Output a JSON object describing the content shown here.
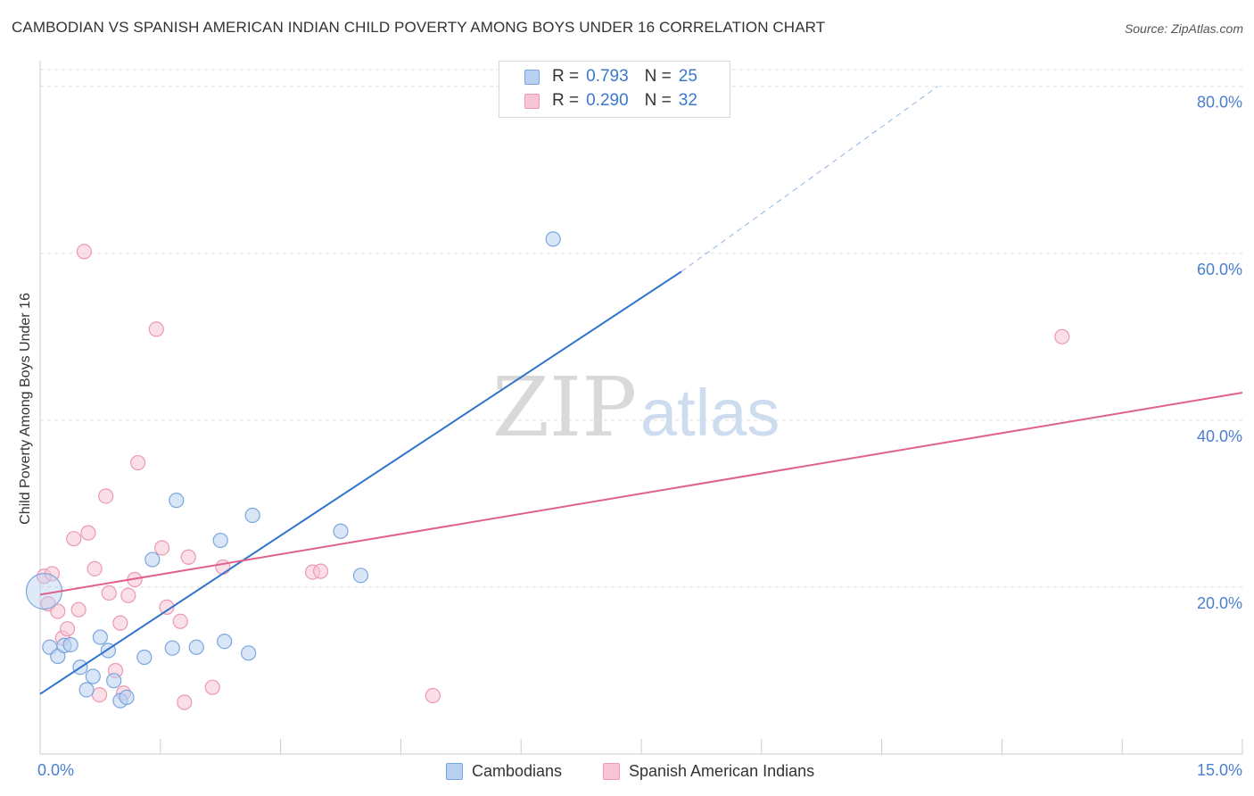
{
  "title": "CAMBODIAN VS SPANISH AMERICAN INDIAN CHILD POVERTY AMONG BOYS UNDER 16 CORRELATION CHART",
  "source": "Source: ZipAtlas.com",
  "watermark": {
    "zip": "ZIP",
    "atlas": "atlas"
  },
  "legend": {
    "r_label": "R =",
    "n_label": "N =",
    "rows": [
      {
        "r": "0.793",
        "n": "25"
      },
      {
        "r": "0.290",
        "n": "32"
      }
    ]
  },
  "colors": {
    "cambodian_fill": "#b8d1f2",
    "cambodian_stroke": "#7aa6de",
    "cambodian_line": "#2f73cc",
    "spanish_fill": "#f8c5d4",
    "spanish_stroke": "#ec98b2",
    "spanish_line": "#e0628b",
    "grid": "#dedede",
    "tick_text": "#4a7fcf"
  },
  "chart_data": {
    "type": "scatter",
    "title": "CAMBODIAN VS SPANISH AMERICAN INDIAN CHILD POVERTY AMONG BOYS UNDER 16 CORRELATION CHART",
    "xlabel": "",
    "ylabel": "Child Poverty Among Boys Under 16",
    "xlim": [
      0,
      15
    ],
    "ylim": [
      0,
      82
    ],
    "x_tick_labels": [
      {
        "value": 0,
        "label": "0.0%"
      },
      {
        "value": 15,
        "label": "15.0%"
      }
    ],
    "y_tick_labels": [
      {
        "value": 20,
        "label": "20.0%"
      },
      {
        "value": 40,
        "label": "40.0%"
      },
      {
        "value": 60,
        "label": "60.0%"
      },
      {
        "value": 80,
        "label": "80.0%"
      }
    ],
    "grid": true,
    "legend_position": "top-center",
    "series": [
      {
        "name": "Cambodians",
        "r": 0.793,
        "n": 25,
        "points": [
          [
            0.12,
            12.8
          ],
          [
            0.22,
            11.7
          ],
          [
            0.3,
            13.0
          ],
          [
            0.38,
            13.1
          ],
          [
            0.5,
            10.4
          ],
          [
            0.58,
            7.7
          ],
          [
            0.66,
            9.3
          ],
          [
            0.75,
            14.0
          ],
          [
            0.85,
            12.4
          ],
          [
            0.92,
            8.8
          ],
          [
            1.0,
            6.4
          ],
          [
            1.08,
            6.8
          ],
          [
            1.3,
            11.6
          ],
          [
            1.4,
            23.3
          ],
          [
            1.65,
            12.7
          ],
          [
            1.7,
            30.4
          ],
          [
            1.95,
            12.8
          ],
          [
            2.25,
            25.6
          ],
          [
            2.3,
            13.5
          ],
          [
            2.6,
            12.1
          ],
          [
            2.65,
            28.6
          ],
          [
            3.75,
            26.7
          ],
          [
            4.0,
            21.4
          ],
          [
            6.4,
            61.7
          ],
          [
            0.05,
            19.5
          ]
        ],
        "trend": {
          "x0": 0.0,
          "y0": 7.2,
          "x1": 8.0,
          "y1": 57.8,
          "dash_x1": 11.2,
          "dash_y1": 80.0
        }
      },
      {
        "name": "Spanish American Indians",
        "r": 0.29,
        "n": 32,
        "points": [
          [
            0.05,
            21.3
          ],
          [
            0.1,
            18.0
          ],
          [
            0.15,
            21.6
          ],
          [
            0.22,
            17.1
          ],
          [
            0.28,
            13.9
          ],
          [
            0.34,
            15.0
          ],
          [
            0.42,
            25.8
          ],
          [
            0.48,
            17.3
          ],
          [
            0.6,
            26.5
          ],
          [
            0.68,
            22.2
          ],
          [
            0.74,
            7.1
          ],
          [
            0.82,
            30.9
          ],
          [
            0.86,
            19.3
          ],
          [
            0.94,
            10.0
          ],
          [
            1.0,
            15.7
          ],
          [
            1.04,
            7.3
          ],
          [
            1.1,
            19.0
          ],
          [
            1.18,
            20.9
          ],
          [
            1.22,
            34.9
          ],
          [
            1.45,
            50.9
          ],
          [
            1.52,
            24.7
          ],
          [
            1.58,
            17.6
          ],
          [
            1.75,
            15.9
          ],
          [
            1.8,
            6.2
          ],
          [
            1.85,
            23.6
          ],
          [
            2.15,
            8.0
          ],
          [
            2.28,
            22.4
          ],
          [
            3.4,
            21.8
          ],
          [
            3.5,
            21.9
          ],
          [
            4.9,
            7.0
          ],
          [
            0.55,
            60.2
          ],
          [
            12.75,
            50.0
          ]
        ],
        "trend": {
          "x0": 0.0,
          "y0": 19.1,
          "x1": 15.0,
          "y1": 43.3
        }
      }
    ]
  }
}
